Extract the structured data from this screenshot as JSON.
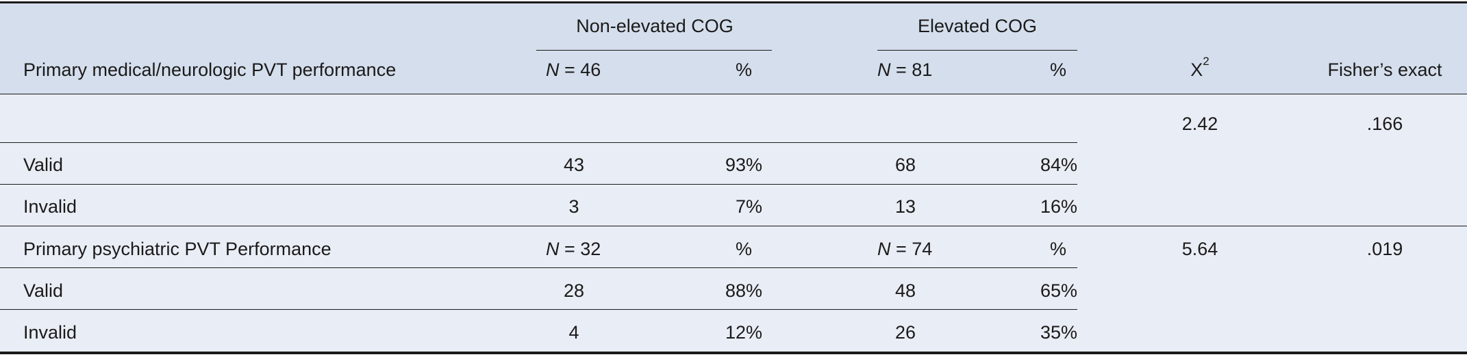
{
  "header": {
    "group_noncog": "Non-elevated COG",
    "group_cog": "Elevated COG",
    "row_label": "Primary medical/neurologic PVT performance",
    "n_noncog_sym": "N",
    "n_noncog_val": " = 46",
    "pct_noncog": "%",
    "n_cog_sym": "N",
    "n_cog_val": " = 81",
    "pct_cog": "%",
    "chi_base": "X",
    "chi_exp": "2",
    "fisher": "Fisher’s exact"
  },
  "section1": {
    "chi": "2.42",
    "fisher": ".166",
    "rows": [
      {
        "label": "Valid",
        "n1": "43",
        "p1": "93%",
        "n2": "68",
        "p2": "84%"
      },
      {
        "label": "Invalid",
        "n1": "3",
        "p1": "7%",
        "n2": "13",
        "p2": "16%"
      }
    ]
  },
  "section2": {
    "label": "Primary psychiatric PVT Performance",
    "n_noncog_sym": "N",
    "n_noncog_val": " = 32",
    "pct_noncog": "%",
    "n_cog_sym": "N",
    "n_cog_val": " = 74",
    "pct_cog": "%",
    "chi": "5.64",
    "fisher": ".019",
    "rows": [
      {
        "label": "Valid",
        "n1": "28",
        "p1": "88%",
        "n2": "48",
        "p2": "65%"
      },
      {
        "label": "Invalid",
        "n1": "4",
        "p1": "12%",
        "n2": "26",
        "p2": "35%"
      }
    ]
  }
}
